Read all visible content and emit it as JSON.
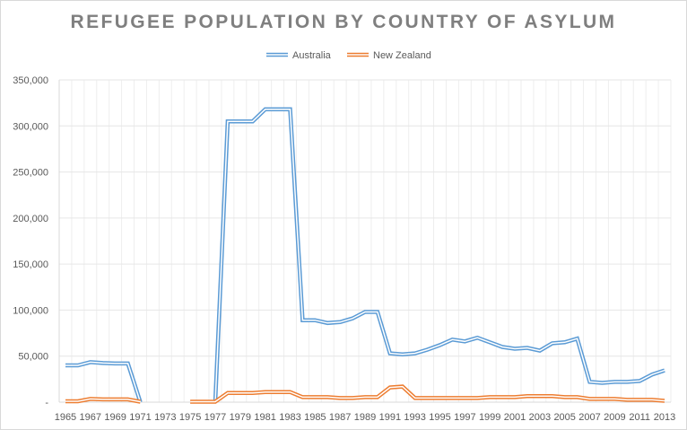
{
  "chart_data": {
    "type": "line",
    "title": "REFUGEE POPULATION BY COUNTRY OF ASYLUM",
    "xlabel": "",
    "ylabel": "",
    "ylim": [
      0,
      350000
    ],
    "yticks": [
      0,
      50000,
      100000,
      150000,
      200000,
      250000,
      300000,
      350000
    ],
    "ytick_labels": [
      "-",
      "50,000",
      "100,000",
      "150,000",
      "200,000",
      "250,000",
      "300,000",
      "350,000"
    ],
    "x": [
      1965,
      1966,
      1967,
      1968,
      1969,
      1970,
      1971,
      1972,
      1973,
      1974,
      1975,
      1976,
      1977,
      1978,
      1979,
      1980,
      1981,
      1982,
      1983,
      1984,
      1985,
      1986,
      1987,
      1988,
      1989,
      1990,
      1991,
      1992,
      1993,
      1994,
      1995,
      1996,
      1997,
      1998,
      1999,
      2000,
      2001,
      2002,
      2003,
      2004,
      2005,
      2006,
      2007,
      2008,
      2009,
      2010,
      2011,
      2012,
      2013
    ],
    "xtick_labels": [
      "1965",
      "1967",
      "1969",
      "1971",
      "1973",
      "1975",
      "1977",
      "1979",
      "1981",
      "1983",
      "1985",
      "1987",
      "1989",
      "1991",
      "1993",
      "1995",
      "1997",
      "1999",
      "2001",
      "2003",
      "2005",
      "2007",
      "2009",
      "2011",
      "2013"
    ],
    "grid": true,
    "legend_position": "top",
    "series": [
      {
        "name": "Australia",
        "color": "#5b9bd5",
        "values": [
          40000,
          40000,
          43500,
          42500,
          42000,
          42000,
          0,
          null,
          null,
          null,
          null,
          null,
          0,
          305000,
          305000,
          305000,
          318000,
          318000,
          318000,
          89000,
          89000,
          86000,
          87000,
          91000,
          98000,
          98000,
          53000,
          52000,
          53000,
          57000,
          62000,
          68000,
          66000,
          70000,
          65000,
          60000,
          58000,
          59000,
          56000,
          64000,
          65000,
          69000,
          22000,
          21000,
          22000,
          22000,
          23000,
          30000,
          34500
        ]
      },
      {
        "name": "New Zealand",
        "color": "#ed7d31",
        "values": [
          1000,
          1000,
          3500,
          3000,
          3000,
          3000,
          500,
          null,
          null,
          null,
          500,
          500,
          500,
          10000,
          10000,
          10000,
          11000,
          11000,
          11000,
          5500,
          5500,
          5500,
          4500,
          4500,
          5500,
          5500,
          16000,
          17000,
          4500,
          4500,
          4500,
          4500,
          4500,
          4500,
          5500,
          5500,
          5500,
          6500,
          6500,
          6500,
          5500,
          5500,
          3500,
          3500,
          3500,
          2500,
          2500,
          2500,
          1500
        ]
      }
    ]
  }
}
